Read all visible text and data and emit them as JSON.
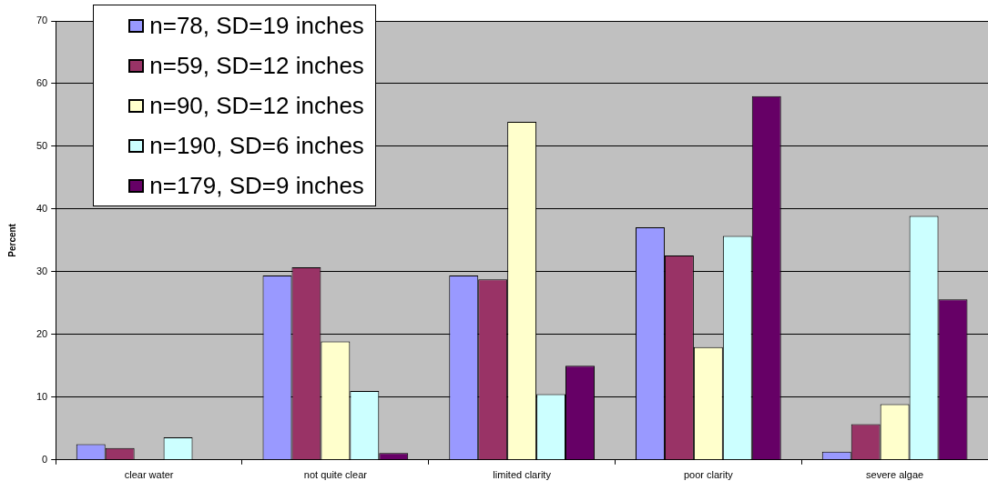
{
  "chart_data": {
    "type": "bar",
    "ylabel": "Percent",
    "categories": [
      "clear water",
      "not quite clear",
      "limited clarity",
      "poor clarity",
      "severe algae"
    ],
    "series": [
      {
        "name": "n=78, SD=19 inches",
        "color": "#9999ff",
        "values": [
          2.5,
          29.4,
          29.4,
          37.1,
          1.3
        ]
      },
      {
        "name": "n=59, SD=12 inches",
        "color": "#993366",
        "values": [
          1.9,
          30.7,
          28.8,
          32.6,
          5.7
        ]
      },
      {
        "name": "n=90, SD=12 inches",
        "color": "#ffffcc",
        "values": [
          0,
          18.9,
          53.9,
          18,
          8.9
        ]
      },
      {
        "name": "n=190, SD=6 inches",
        "color": "#ccffff",
        "values": [
          3.6,
          11,
          10.5,
          35.7,
          38.9
        ]
      },
      {
        "name": "n=179, SD=9 inches",
        "color": "#660066",
        "values": [
          0,
          1.1,
          15,
          58,
          25.6
        ]
      }
    ],
    "ylim": [
      0,
      70
    ],
    "yticks": [
      0,
      10,
      20,
      30,
      40,
      50,
      60,
      70
    ],
    "grid": "y",
    "legend": "top left"
  }
}
